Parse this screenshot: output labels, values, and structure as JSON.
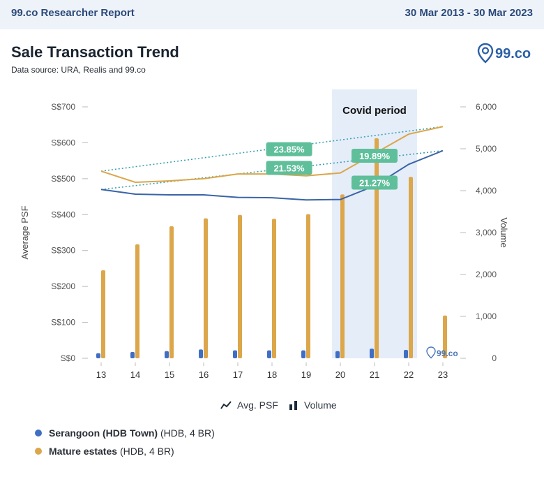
{
  "header": {
    "brand": "99.co Researcher Report",
    "date_range": "30 Mar 2013 - 30 Mar 2023"
  },
  "title": "Sale Transaction Trend",
  "source": "Data source: URA, Realis and 99.co",
  "logo_text": "99.co",
  "watermark": "99.co",
  "colors": {
    "serangoon": "#3f6fc4",
    "serangoon_line": "#3a64a6",
    "mature": "#dca64a",
    "covid_band": "#dfe9f8",
    "label_bg": "#5fbf9a"
  },
  "legend": {
    "line_label": "Avg. PSF",
    "bar_label": "Volume",
    "line_icon": "line-chart-icon",
    "bar_icon": "bar-chart-icon"
  },
  "series_legend": [
    {
      "name": "Serangoon (HDB Town)",
      "detail": "(HDB, 4 BR)",
      "color": "#3f6fc4"
    },
    {
      "name": "Mature estates",
      "detail": "(HDB, 4 BR)",
      "color": "#dca64a"
    }
  ],
  "chart_data": {
    "type": "bar",
    "categories": [
      "13",
      "14",
      "15",
      "16",
      "17",
      "18",
      "19",
      "20",
      "21",
      "22",
      "23"
    ],
    "y_left": {
      "label": "Average PSF",
      "ticks": [
        "S$0",
        "S$100",
        "S$200",
        "S$300",
        "S$400",
        "S$500",
        "S$600",
        "S$700"
      ],
      "range": [
        0,
        700
      ]
    },
    "y_right": {
      "label": "Volume",
      "ticks": [
        "0",
        "1,000",
        "2,000",
        "3,000",
        "4,000",
        "5,000",
        "6,000"
      ],
      "range": [
        0,
        6000
      ]
    },
    "bar_series": [
      {
        "name": "Serangoon (HDB Town)",
        "axis": "right",
        "values": [
          120,
          150,
          170,
          210,
          190,
          190,
          190,
          170,
          230,
          200,
          0
        ]
      },
      {
        "name": "Mature estates",
        "axis": "right",
        "values": [
          2100,
          2720,
          3150,
          3340,
          3420,
          3330,
          3440,
          3910,
          5250,
          4330,
          1020
        ]
      }
    ],
    "line_series": [
      {
        "name": "Serangoon (HDB Town)",
        "axis": "left",
        "values": [
          470,
          457,
          455,
          455,
          448,
          447,
          441,
          442,
          480,
          540,
          578
        ]
      },
      {
        "name": "Mature estates",
        "axis": "left",
        "values": [
          521,
          490,
          494,
          500,
          513,
          513,
          508,
          516,
          570,
          624,
          645
        ]
      }
    ],
    "trend_lines": [
      {
        "series": "Serangoon (HDB Town)",
        "from": [
          0,
          470
        ],
        "to": [
          10,
          578
        ]
      },
      {
        "series": "Mature estates",
        "from": [
          0,
          521
        ],
        "to": [
          10,
          645
        ]
      }
    ],
    "highlight": {
      "label": "Covid period",
      "from_category": "20",
      "to_category": "22"
    },
    "annotations": [
      {
        "text": "23.85%",
        "x": 5.5,
        "y": 582
      },
      {
        "text": "21.53%",
        "x": 5.5,
        "y": 530
      },
      {
        "text": "19.89%",
        "x": 8,
        "y": 564
      },
      {
        "text": "21.27%",
        "x": 8,
        "y": 489
      }
    ]
  }
}
